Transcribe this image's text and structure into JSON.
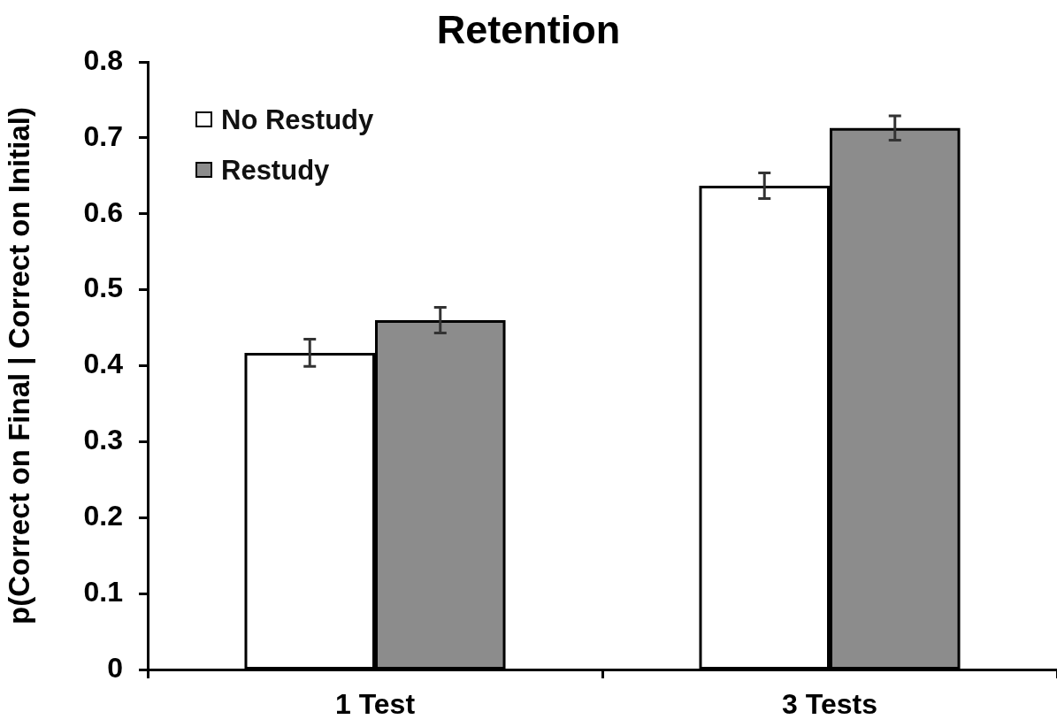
{
  "chart_data": {
    "type": "bar",
    "title": "Retention",
    "ylabel": "p(Correct on Final | Correct on Initial)",
    "categories": [
      "1 Test",
      "3 Tests"
    ],
    "series": [
      {
        "name": "No Restudy",
        "color": "#ffffff",
        "values": [
          0.417,
          0.637
        ],
        "errors": [
          0.018,
          0.017
        ]
      },
      {
        "name": "Restudy",
        "color": "#8c8c8c",
        "values": [
          0.46,
          0.713
        ],
        "errors": [
          0.017,
          0.016
        ]
      }
    ],
    "ylim": [
      0,
      0.8
    ],
    "yticks": [
      0,
      0.1,
      0.2,
      0.3,
      0.4,
      0.5,
      0.6,
      0.7,
      0.8
    ],
    "grid": false,
    "legend": "top left"
  }
}
